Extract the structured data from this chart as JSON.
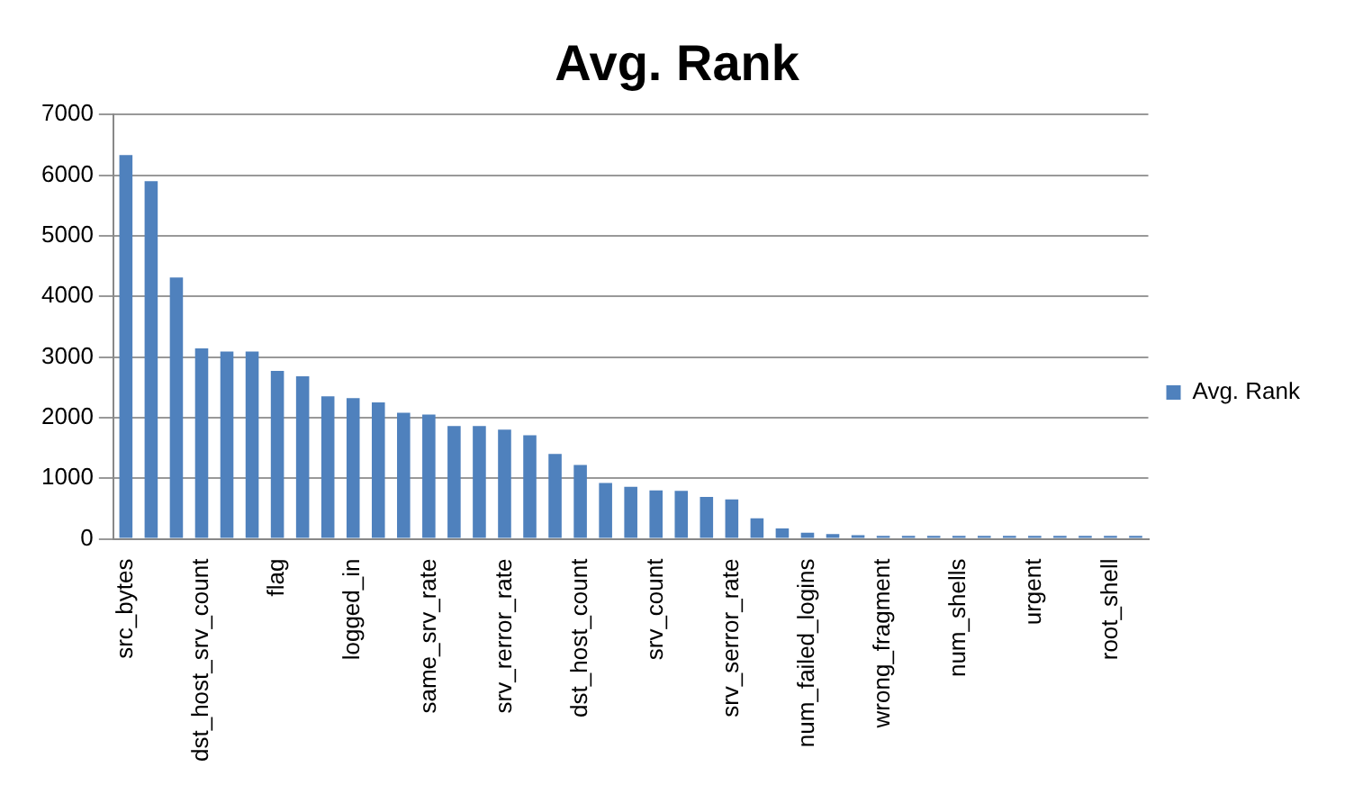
{
  "chart_data": {
    "type": "bar",
    "title": "Avg. Rank",
    "categories": [
      "src_bytes",
      null,
      null,
      "dst_host_srv_count",
      null,
      null,
      "flag",
      null,
      null,
      "logged_in",
      null,
      null,
      "same_srv_rate",
      null,
      null,
      "srv_rerror_rate",
      null,
      null,
      "dst_host_count",
      null,
      null,
      "srv_count",
      null,
      null,
      "srv_serror_rate",
      null,
      null,
      "num_failed_logins",
      null,
      null,
      "wrong_fragment",
      null,
      null,
      "num_shells",
      null,
      null,
      "urgent",
      null,
      null,
      "root_shell",
      null
    ],
    "series": [
      {
        "name": "Avg. Rank",
        "color": "#4f81bd",
        "values": [
          6330,
          5900,
          4310,
          3140,
          3090,
          3090,
          2770,
          2680,
          2350,
          2320,
          2250,
          2080,
          2050,
          1860,
          1860,
          1800,
          1710,
          1400,
          1220,
          920,
          860,
          800,
          790,
          690,
          650,
          340,
          170,
          100,
          80,
          60,
          50,
          50,
          50,
          50,
          50,
          50,
          50,
          50,
          50,
          50,
          50
        ]
      }
    ],
    "ylim": [
      0,
      7000
    ],
    "yticks": [
      0,
      1000,
      2000,
      3000,
      4000,
      5000,
      6000,
      7000
    ],
    "grid": "y",
    "legend": "right"
  }
}
